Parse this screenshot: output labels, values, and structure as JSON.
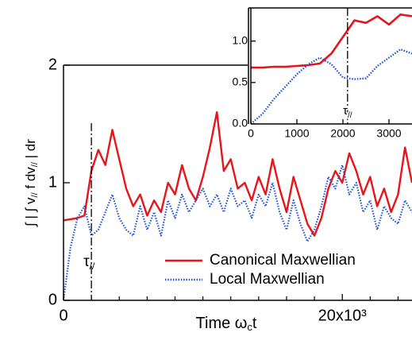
{
  "chart_data": [
    {
      "type": "line",
      "x_label": {
        "main": "Time  ω",
        "sub": "c",
        "tail": "t"
      },
      "y_label": [
        "∫ | ∫ v",
        "//",
        " f dv",
        "//",
        " | dr"
      ],
      "xlim": [
        0,
        25000
      ],
      "ylim": [
        0,
        2
      ],
      "xticks": [
        0,
        {
          "value": 20000,
          "label": "20x10³"
        }
      ],
      "xminorticks": [
        2000,
        4000,
        6000,
        8000,
        10000,
        12000,
        14000,
        16000,
        18000,
        22000,
        24000
      ],
      "yticks": [
        0,
        1,
        2
      ],
      "annotation": {
        "x": 2000,
        "text": "τ",
        "sub": "//"
      },
      "legend": "lower right",
      "x": [
        0,
        500,
        1000,
        1500,
        2000,
        2500,
        3000,
        3500,
        4000,
        4500,
        5000,
        5500,
        6000,
        6500,
        7000,
        7500,
        8000,
        8500,
        9000,
        9500,
        10000,
        10500,
        11000,
        11500,
        12000,
        12500,
        13000,
        13500,
        14000,
        14500,
        15000,
        15500,
        16000,
        16500,
        17000,
        17500,
        18000,
        18500,
        19000,
        19500,
        20000,
        20500,
        21000,
        21500,
        22000,
        22500,
        23000,
        23500,
        24000,
        24500,
        25000
      ],
      "series": [
        {
          "name": "Canonical Maxwellian",
          "color": "#e8141a",
          "style": "solid",
          "values": [
            0.68,
            0.69,
            0.7,
            0.72,
            1.1,
            1.28,
            1.15,
            1.45,
            1.2,
            0.95,
            0.8,
            0.9,
            0.72,
            0.85,
            0.75,
            1.0,
            0.9,
            1.15,
            0.95,
            0.85,
            1.05,
            1.3,
            1.6,
            1.1,
            1.2,
            0.95,
            1.0,
            0.85,
            1.05,
            0.9,
            1.2,
            0.95,
            0.75,
            1.05,
            0.85,
            0.65,
            0.55,
            0.7,
            0.95,
            1.1,
            1.0,
            1.25,
            1.1,
            0.9,
            1.05,
            0.8,
            0.95,
            0.75,
            0.9,
            1.3,
            1.0
          ]
        },
        {
          "name": "Local Maxwellian",
          "color": "#1a4fd8",
          "style": "dotted",
          "values": [
            0,
            0.45,
            0.7,
            0.8,
            0.55,
            0.6,
            0.75,
            0.9,
            0.7,
            0.6,
            0.55,
            0.8,
            0.6,
            0.75,
            0.55,
            0.85,
            0.7,
            0.9,
            0.75,
            0.85,
            0.95,
            0.8,
            0.9,
            0.75,
            0.95,
            0.8,
            0.85,
            0.7,
            0.9,
            0.8,
            1.0,
            0.75,
            0.6,
            0.85,
            0.65,
            0.5,
            0.6,
            0.8,
            1.05,
            0.95,
            1.15,
            0.9,
            1.0,
            0.75,
            0.85,
            0.6,
            0.8,
            0.7,
            0.65,
            0.85,
            0.75
          ]
        }
      ]
    },
    {
      "type": "line",
      "xlim": [
        0,
        3500
      ],
      "ylim": [
        0,
        1.4
      ],
      "xticks": [
        0,
        1000,
        2000,
        3000
      ],
      "yticks": [
        {
          "value": 0,
          "label": "0.0"
        },
        0.5,
        {
          "value": 1,
          "label": "1.0"
        }
      ],
      "annotation": {
        "x": 2100,
        "text": "τ",
        "sub": "//"
      },
      "x": [
        0,
        250,
        500,
        750,
        1000,
        1250,
        1500,
        1750,
        2000,
        2250,
        2500,
        2750,
        3000,
        3250,
        3500
      ],
      "series": [
        {
          "color": "#e8141a",
          "style": "solid",
          "values": [
            0.68,
            0.68,
            0.69,
            0.69,
            0.7,
            0.71,
            0.73,
            0.85,
            1.05,
            1.25,
            1.22,
            1.3,
            1.2,
            1.32,
            1.3
          ]
        },
        {
          "color": "#1a4fd8",
          "style": "dotted",
          "values": [
            0,
            0.12,
            0.3,
            0.45,
            0.6,
            0.72,
            0.8,
            0.72,
            0.56,
            0.54,
            0.55,
            0.7,
            0.8,
            0.9,
            0.85
          ]
        }
      ]
    }
  ]
}
